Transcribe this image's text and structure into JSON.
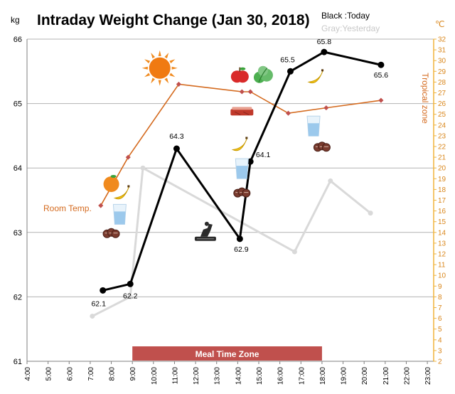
{
  "chart_data": {
    "type": "line",
    "title": "Intraday Weight Change (Jan 30, 2018)",
    "legend": {
      "today": "Black :Today",
      "yesterday": "Gray:Yesterday"
    },
    "y_left": {
      "unit": "kg",
      "range": [
        61,
        66
      ],
      "ticks": [
        61,
        62,
        63,
        64,
        65,
        66
      ]
    },
    "y_right": {
      "unit": "℃",
      "range": [
        2,
        32
      ],
      "ticks": [
        2,
        3,
        4,
        5,
        6,
        7,
        8,
        9,
        10,
        11,
        12,
        13,
        14,
        15,
        16,
        17,
        18,
        19,
        20,
        21,
        22,
        23,
        24,
        25,
        26,
        27,
        28,
        29,
        30,
        31,
        32
      ]
    },
    "x_ticks": [
      "4:00",
      "5:00",
      "6:00",
      "7:00",
      "8:00",
      "9:00",
      "10:00",
      "11:00",
      "12:00",
      "13:00",
      "14:00",
      "15:00",
      "16:00",
      "17:00",
      "18:00",
      "19:00",
      "20:00",
      "21:00",
      "22:00",
      "23:00"
    ],
    "x_range": [
      4,
      23.3
    ],
    "series": [
      {
        "name": "Black :Today",
        "color": "#000000",
        "points": [
          [
            7.6,
            62.1
          ],
          [
            8.9,
            62.2
          ],
          [
            11.1,
            64.3
          ],
          [
            14.1,
            62.9
          ],
          [
            14.6,
            64.1
          ],
          [
            16.5,
            65.5
          ],
          [
            18.1,
            65.8
          ],
          [
            20.8,
            65.6
          ]
        ],
        "labels": [
          "62.1",
          "62.2",
          "64.3",
          "62.9",
          "64.1",
          "65.5",
          "65.8",
          "65.6"
        ]
      },
      {
        "name": "Gray:Yesterday",
        "color": "#d9d9d9",
        "points": [
          [
            7.1,
            61.7
          ],
          [
            8.9,
            62.0
          ],
          [
            9.5,
            64.0
          ],
          [
            16.7,
            62.7
          ],
          [
            18.4,
            63.8
          ],
          [
            20.3,
            63.3
          ]
        ]
      },
      {
        "name": "Temperature",
        "color": "#d46a1e",
        "axis": "right",
        "points": [
          [
            7.5,
            16.5
          ],
          [
            8.8,
            21.0
          ],
          [
            11.2,
            27.8
          ],
          [
            14.2,
            27.1
          ],
          [
            14.6,
            27.1
          ],
          [
            16.4,
            25.1
          ],
          [
            18.2,
            25.6
          ],
          [
            20.8,
            26.3
          ]
        ]
      }
    ],
    "annotations": {
      "room_temp": "Room Temp.",
      "tropical": "Tropical zone"
    },
    "meal_zone": {
      "label": "Meal Time Zone",
      "start": 9.0,
      "end": 18.0,
      "color": "#c0504d"
    },
    "gridlines": true
  },
  "icons": [
    {
      "name": "sun-icon",
      "x": 10.3,
      "y": 65.55
    },
    {
      "name": "apple-icon",
      "x": 14.1,
      "y": 65.44
    },
    {
      "name": "lettuce-icon",
      "x": 15.2,
      "y": 65.44
    },
    {
      "name": "banana-icon",
      "x": 17.7,
      "y": 65.4
    },
    {
      "name": "steak-icon",
      "x": 14.2,
      "y": 64.87
    },
    {
      "name": "water-glass-icon",
      "x": 17.6,
      "y": 64.65
    },
    {
      "name": "dumplings-icon",
      "x": 18.0,
      "y": 64.33
    },
    {
      "name": "banana-icon",
      "x": 14.1,
      "y": 64.35
    },
    {
      "name": "water-glass-icon",
      "x": 14.2,
      "y": 63.99
    },
    {
      "name": "dumplings-icon",
      "x": 14.2,
      "y": 63.62
    },
    {
      "name": "orange-icon",
      "x": 8.0,
      "y": 63.76
    },
    {
      "name": "banana-icon",
      "x": 8.5,
      "y": 63.6
    },
    {
      "name": "water-glass-icon",
      "x": 8.4,
      "y": 63.28
    },
    {
      "name": "dumplings-icon",
      "x": 8.0,
      "y": 62.99
    },
    {
      "name": "toilet-icon",
      "x": 12.5,
      "y": 63.0
    }
  ]
}
